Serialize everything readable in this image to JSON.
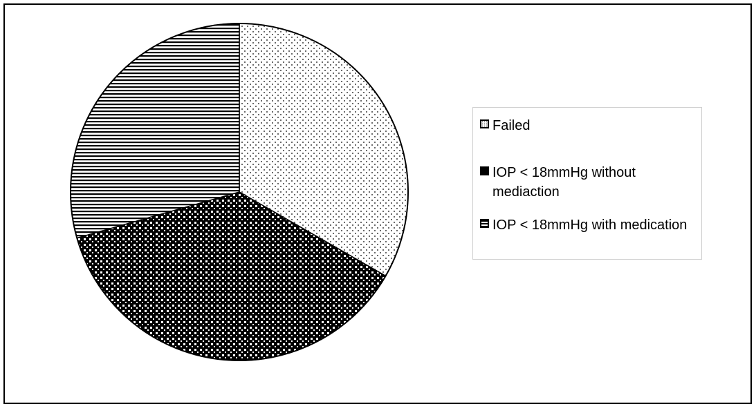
{
  "chart_data": {
    "type": "pie",
    "title": "",
    "slices": [
      {
        "label": "Failed",
        "value": 33.3,
        "pattern": "dots"
      },
      {
        "label": "IOP < 18mmHg without mediaction",
        "value": 37.3,
        "pattern": "checker"
      },
      {
        "label": "IOP < 18mmHg with medication",
        "value": 29.4,
        "pattern": "horizontal-lines"
      }
    ],
    "legend_position": "right",
    "colors": {
      "ink": "#000000",
      "background": "#ffffff",
      "legend_border": "#cfcfcf"
    }
  }
}
